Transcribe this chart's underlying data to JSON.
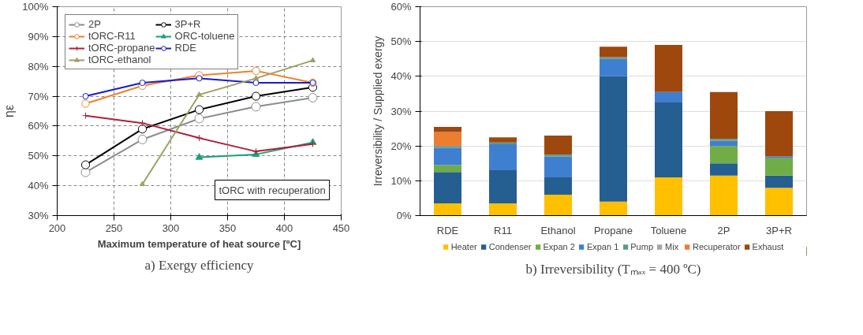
{
  "chart_data": [
    {
      "type": "line",
      "title": "a) Exergy efficiency",
      "xlabel": "Maximum temperature of heat source [ºC]",
      "ylabel": "ηε",
      "xlim": [
        200,
        450
      ],
      "xticks": [
        200,
        250,
        300,
        350,
        400,
        450
      ],
      "ylim": [
        30,
        100
      ],
      "yticks": [
        {
          "value": 30,
          "label": "30%"
        },
        {
          "value": 40,
          "label": "40%"
        },
        {
          "value": 50,
          "label": "50%"
        },
        {
          "value": 60,
          "label": "60%"
        },
        {
          "value": 70,
          "label": "70%"
        },
        {
          "value": 80,
          "label": "80%"
        },
        {
          "value": 90,
          "label": "90%"
        },
        {
          "value": 100,
          "label": "100%"
        }
      ],
      "grid": true,
      "legend": "top left",
      "line_style": "solid",
      "series": [
        {
          "name": "2P",
          "color": "#8c8c8c",
          "marker": "circle",
          "x": [
            225,
            275,
            325,
            375,
            425
          ],
          "values": [
            44.5,
            55.5,
            62.5,
            66.5,
            69.5
          ]
        },
        {
          "name": "3P+R",
          "color": "#000000",
          "marker": "circle",
          "x": [
            225,
            275,
            325,
            375,
            425
          ],
          "values": [
            47,
            59,
            65.5,
            70,
            73
          ]
        },
        {
          "name": "tORC-R11",
          "color": "#e8842c",
          "marker": "circle",
          "x": [
            225,
            275,
            325,
            375,
            425
          ],
          "values": [
            67.5,
            73.5,
            77,
            78.5,
            74.5
          ]
        },
        {
          "name": "ORC-toluene",
          "color": "#1aa07a",
          "marker": "triangle",
          "x": [
            325,
            375,
            425
          ],
          "values": [
            49.5,
            50.5,
            54.5
          ]
        },
        {
          "name": "tORC-propane",
          "color": "#b0203a",
          "marker": "cross",
          "x": [
            225,
            275,
            325,
            375,
            425
          ],
          "values": [
            63.5,
            61,
            56,
            51.5,
            54
          ]
        },
        {
          "name": "RDE",
          "color": "#1a1ad0",
          "marker": "circle",
          "x": [
            225,
            275,
            325,
            375,
            425
          ],
          "values": [
            70,
            74.5,
            76,
            74.5,
            74.5
          ]
        },
        {
          "name": "tORC-ethanol",
          "color": "#9ea060",
          "marker": "triangle",
          "x": [
            275,
            325,
            375,
            425
          ],
          "values": [
            40.5,
            70.5,
            76,
            82
          ]
        }
      ],
      "annotations": [
        "tORC with recuperation"
      ]
    },
    {
      "type": "bar",
      "stacked": true,
      "title": "b) Irreversibility (Tₘₐₓ = 400 ºC)",
      "ylabel": "Irreversibility / Supplied exergy",
      "categories": [
        "RDE",
        "R11",
        "Ethanol",
        "Propane",
        "Toluene",
        "2P",
        "3P+R"
      ],
      "ylim": [
        0,
        60
      ],
      "yticks": [
        {
          "value": 0,
          "label": "0%"
        },
        {
          "value": 10,
          "label": "10%"
        },
        {
          "value": 20,
          "label": "20%"
        },
        {
          "value": 30,
          "label": "30%"
        },
        {
          "value": 40,
          "label": "40%"
        },
        {
          "value": 50,
          "label": "50%"
        },
        {
          "value": 60,
          "label": "60%"
        }
      ],
      "grid": "y",
      "legend": "bottom",
      "series": [
        {
          "name": "Heater",
          "color": "#ffc000",
          "values": [
            3.5,
            3.5,
            6,
            4,
            11,
            11.5,
            8
          ]
        },
        {
          "name": "Condenser",
          "color": "#255e91",
          "values": [
            9,
            9.5,
            5,
            36,
            21.5,
            3.5,
            3.5
          ]
        },
        {
          "name": "Expan 2",
          "color": "#70ad47",
          "values": [
            2,
            0,
            0,
            0,
            0,
            5,
            5
          ]
        },
        {
          "name": "Expan 1",
          "color": "#3f7fd0",
          "values": [
            5,
            7.5,
            6,
            5,
            3,
            1.5,
            0.5
          ]
        },
        {
          "name": "Pump",
          "color": "#5b9b8b",
          "values": [
            0.5,
            0.5,
            0.5,
            0.5,
            0,
            0.5,
            0
          ]
        },
        {
          "name": "Mix",
          "color": "#a5a5a5",
          "values": [
            0,
            0,
            0,
            0,
            0,
            0,
            0
          ]
        },
        {
          "name": "Recuperator",
          "color": "#ed7d31",
          "values": [
            4,
            0,
            0,
            0,
            0,
            0,
            0
          ]
        },
        {
          "name": "Exhaust",
          "color": "#9e480e",
          "values": [
            1.5,
            1.5,
            5.5,
            3,
            13.5,
            13.5,
            13
          ]
        }
      ]
    }
  ]
}
